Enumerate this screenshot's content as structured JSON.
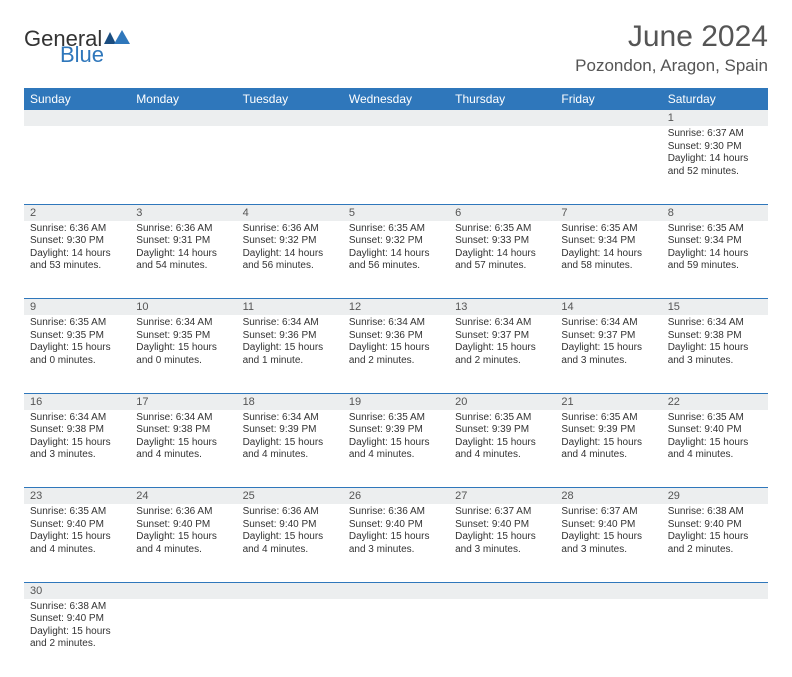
{
  "brand": {
    "part1": "General",
    "part2": "Blue"
  },
  "title": "June 2024",
  "location": "Pozondon, Aragon, Spain",
  "colors": {
    "header_bg": "#2f77bb",
    "header_text": "#ffffff",
    "daynum_bg": "#eceeef",
    "rule": "#2f77bb",
    "title_text": "#555555",
    "body_text": "#333333"
  },
  "fonts": {
    "title_size_pt": 22,
    "location_size_pt": 13,
    "header_size_pt": 9,
    "body_size_pt": 7.5
  },
  "day_headers": [
    "Sunday",
    "Monday",
    "Tuesday",
    "Wednesday",
    "Thursday",
    "Friday",
    "Saturday"
  ],
  "weeks": [
    [
      null,
      null,
      null,
      null,
      null,
      null,
      {
        "n": "1",
        "sr": "Sunrise: 6:37 AM",
        "ss": "Sunset: 9:30 PM",
        "dl": "Daylight: 14 hours and 52 minutes."
      }
    ],
    [
      {
        "n": "2",
        "sr": "Sunrise: 6:36 AM",
        "ss": "Sunset: 9:30 PM",
        "dl": "Daylight: 14 hours and 53 minutes."
      },
      {
        "n": "3",
        "sr": "Sunrise: 6:36 AM",
        "ss": "Sunset: 9:31 PM",
        "dl": "Daylight: 14 hours and 54 minutes."
      },
      {
        "n": "4",
        "sr": "Sunrise: 6:36 AM",
        "ss": "Sunset: 9:32 PM",
        "dl": "Daylight: 14 hours and 56 minutes."
      },
      {
        "n": "5",
        "sr": "Sunrise: 6:35 AM",
        "ss": "Sunset: 9:32 PM",
        "dl": "Daylight: 14 hours and 56 minutes."
      },
      {
        "n": "6",
        "sr": "Sunrise: 6:35 AM",
        "ss": "Sunset: 9:33 PM",
        "dl": "Daylight: 14 hours and 57 minutes."
      },
      {
        "n": "7",
        "sr": "Sunrise: 6:35 AM",
        "ss": "Sunset: 9:34 PM",
        "dl": "Daylight: 14 hours and 58 minutes."
      },
      {
        "n": "8",
        "sr": "Sunrise: 6:35 AM",
        "ss": "Sunset: 9:34 PM",
        "dl": "Daylight: 14 hours and 59 minutes."
      }
    ],
    [
      {
        "n": "9",
        "sr": "Sunrise: 6:35 AM",
        "ss": "Sunset: 9:35 PM",
        "dl": "Daylight: 15 hours and 0 minutes."
      },
      {
        "n": "10",
        "sr": "Sunrise: 6:34 AM",
        "ss": "Sunset: 9:35 PM",
        "dl": "Daylight: 15 hours and 0 minutes."
      },
      {
        "n": "11",
        "sr": "Sunrise: 6:34 AM",
        "ss": "Sunset: 9:36 PM",
        "dl": "Daylight: 15 hours and 1 minute."
      },
      {
        "n": "12",
        "sr": "Sunrise: 6:34 AM",
        "ss": "Sunset: 9:36 PM",
        "dl": "Daylight: 15 hours and 2 minutes."
      },
      {
        "n": "13",
        "sr": "Sunrise: 6:34 AM",
        "ss": "Sunset: 9:37 PM",
        "dl": "Daylight: 15 hours and 2 minutes."
      },
      {
        "n": "14",
        "sr": "Sunrise: 6:34 AM",
        "ss": "Sunset: 9:37 PM",
        "dl": "Daylight: 15 hours and 3 minutes."
      },
      {
        "n": "15",
        "sr": "Sunrise: 6:34 AM",
        "ss": "Sunset: 9:38 PM",
        "dl": "Daylight: 15 hours and 3 minutes."
      }
    ],
    [
      {
        "n": "16",
        "sr": "Sunrise: 6:34 AM",
        "ss": "Sunset: 9:38 PM",
        "dl": "Daylight: 15 hours and 3 minutes."
      },
      {
        "n": "17",
        "sr": "Sunrise: 6:34 AM",
        "ss": "Sunset: 9:38 PM",
        "dl": "Daylight: 15 hours and 4 minutes."
      },
      {
        "n": "18",
        "sr": "Sunrise: 6:34 AM",
        "ss": "Sunset: 9:39 PM",
        "dl": "Daylight: 15 hours and 4 minutes."
      },
      {
        "n": "19",
        "sr": "Sunrise: 6:35 AM",
        "ss": "Sunset: 9:39 PM",
        "dl": "Daylight: 15 hours and 4 minutes."
      },
      {
        "n": "20",
        "sr": "Sunrise: 6:35 AM",
        "ss": "Sunset: 9:39 PM",
        "dl": "Daylight: 15 hours and 4 minutes."
      },
      {
        "n": "21",
        "sr": "Sunrise: 6:35 AM",
        "ss": "Sunset: 9:39 PM",
        "dl": "Daylight: 15 hours and 4 minutes."
      },
      {
        "n": "22",
        "sr": "Sunrise: 6:35 AM",
        "ss": "Sunset: 9:40 PM",
        "dl": "Daylight: 15 hours and 4 minutes."
      }
    ],
    [
      {
        "n": "23",
        "sr": "Sunrise: 6:35 AM",
        "ss": "Sunset: 9:40 PM",
        "dl": "Daylight: 15 hours and 4 minutes."
      },
      {
        "n": "24",
        "sr": "Sunrise: 6:36 AM",
        "ss": "Sunset: 9:40 PM",
        "dl": "Daylight: 15 hours and 4 minutes."
      },
      {
        "n": "25",
        "sr": "Sunrise: 6:36 AM",
        "ss": "Sunset: 9:40 PM",
        "dl": "Daylight: 15 hours and 4 minutes."
      },
      {
        "n": "26",
        "sr": "Sunrise: 6:36 AM",
        "ss": "Sunset: 9:40 PM",
        "dl": "Daylight: 15 hours and 3 minutes."
      },
      {
        "n": "27",
        "sr": "Sunrise: 6:37 AM",
        "ss": "Sunset: 9:40 PM",
        "dl": "Daylight: 15 hours and 3 minutes."
      },
      {
        "n": "28",
        "sr": "Sunrise: 6:37 AM",
        "ss": "Sunset: 9:40 PM",
        "dl": "Daylight: 15 hours and 3 minutes."
      },
      {
        "n": "29",
        "sr": "Sunrise: 6:38 AM",
        "ss": "Sunset: 9:40 PM",
        "dl": "Daylight: 15 hours and 2 minutes."
      }
    ],
    [
      {
        "n": "30",
        "sr": "Sunrise: 6:38 AM",
        "ss": "Sunset: 9:40 PM",
        "dl": "Daylight: 15 hours and 2 minutes."
      },
      null,
      null,
      null,
      null,
      null,
      null
    ]
  ]
}
